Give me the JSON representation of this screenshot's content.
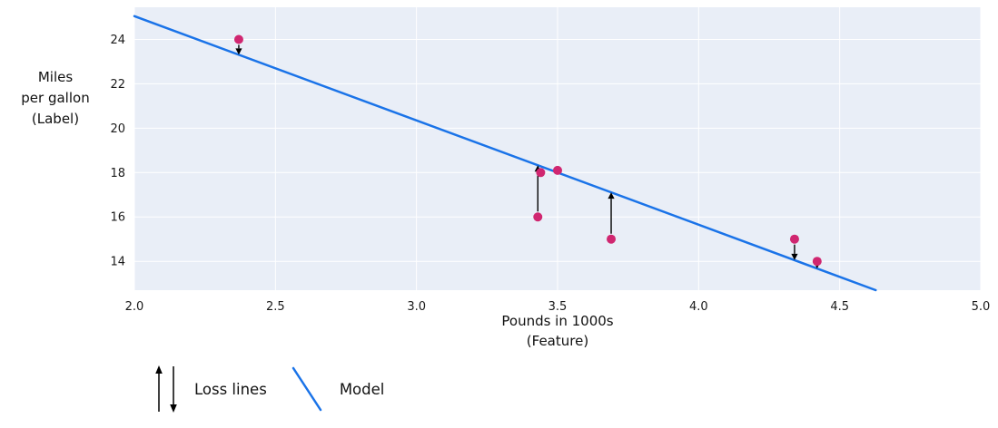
{
  "chart_data": {
    "type": "scatter",
    "title": "",
    "xlabel_lines": [
      "Pounds in 1000s",
      "(Feature)"
    ],
    "ylabel_lines": [
      "Miles",
      "per gallon",
      "(Label)"
    ],
    "xlim": [
      2.0,
      5.0
    ],
    "ylim": [
      12.7,
      25.45
    ],
    "x_ticks": [
      2.0,
      2.5,
      3.0,
      3.5,
      4.0,
      4.5,
      5.0
    ],
    "x_tick_labels": [
      "2.0",
      "2.5",
      "3.0",
      "3.5",
      "4.0",
      "4.5",
      "5.0"
    ],
    "y_ticks": [
      14,
      16,
      18,
      20,
      22,
      24
    ],
    "y_tick_labels": [
      "14",
      "16",
      "18",
      "20",
      "22",
      "24"
    ],
    "points": [
      {
        "x": 2.37,
        "y": 24
      },
      {
        "x": 3.44,
        "y": 18
      },
      {
        "x": 3.5,
        "y": 18.1
      },
      {
        "x": 3.43,
        "y": 16
      },
      {
        "x": 3.69,
        "y": 15
      },
      {
        "x": 4.34,
        "y": 15
      },
      {
        "x": 4.42,
        "y": 14
      }
    ],
    "model_line": {
      "slope": -4.7,
      "intercept": 34.45
    },
    "loss_lines": [
      {
        "x": 2.37,
        "from": 24,
        "direction": "down"
      },
      {
        "x": 3.43,
        "from": 16,
        "direction": "up"
      },
      {
        "x": 3.69,
        "from": 15,
        "direction": "up"
      },
      {
        "x": 4.34,
        "from": 15,
        "direction": "down"
      },
      {
        "x": 4.42,
        "from": 14,
        "direction": "down"
      }
    ],
    "legend": [
      {
        "label": "Loss lines",
        "symbol": "arrows"
      },
      {
        "label": "Model",
        "symbol": "line"
      }
    ],
    "colors": {
      "model_line": "#1a73e8",
      "points": "#d02670",
      "loss_lines": "#000000",
      "plot_bg": "#e9eef7",
      "grid": "#ffffff",
      "tick_text": "#1a1a1a"
    }
  }
}
